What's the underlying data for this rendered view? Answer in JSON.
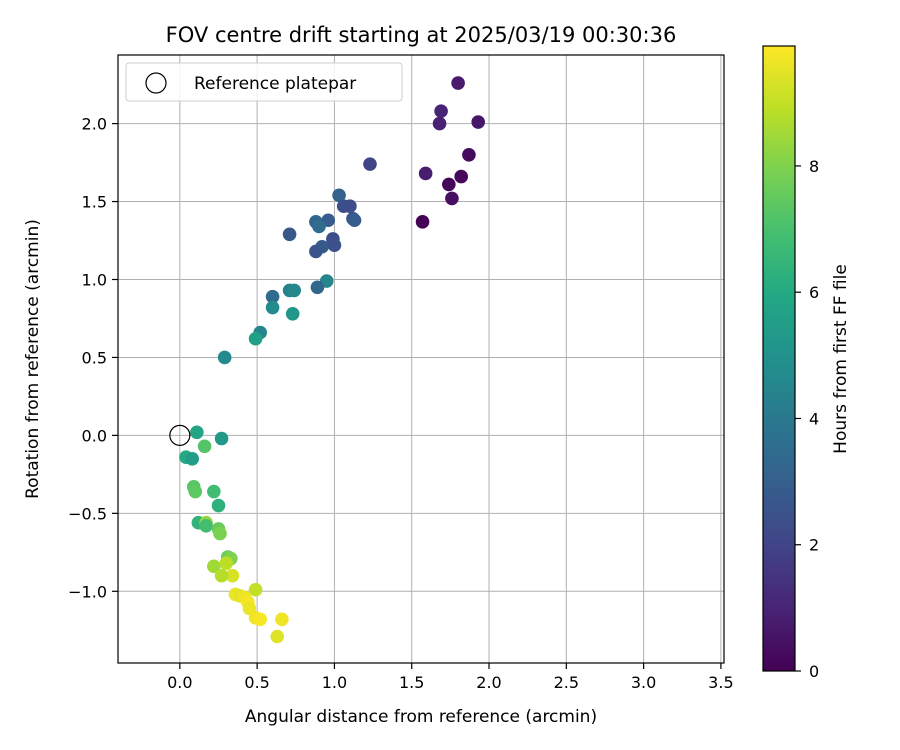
{
  "chart_data": {
    "type": "scatter",
    "title": "FOV centre drift starting at 2025/03/19 00:30:36",
    "xlabel": "Angular distance from reference (arcmin)",
    "ylabel": "Rotation from reference (arcmin)",
    "xlim": [
      -0.4,
      3.52
    ],
    "ylim": [
      -1.46,
      2.44
    ],
    "xticks": [
      0.0,
      0.5,
      1.0,
      1.5,
      2.0,
      2.5,
      3.0,
      3.5
    ],
    "xtick_labels": [
      "0.0",
      "0.5",
      "1.0",
      "1.5",
      "2.0",
      "2.5",
      "3.0",
      "3.5"
    ],
    "yticks": [
      -1.0,
      -0.5,
      0.0,
      0.5,
      1.0,
      1.5,
      2.0
    ],
    "ytick_labels": [
      "−1.0",
      "−0.5",
      "0.0",
      "0.5",
      "1.0",
      "1.5",
      "2.0"
    ],
    "grid": true,
    "legend": {
      "placement": "upper-left",
      "entries": [
        "Reference platepar"
      ]
    },
    "reference_point": {
      "x": 0.0,
      "y": 0.0
    },
    "colorbar": {
      "label": "Hours from first FF file",
      "min": 0,
      "max": 9.9,
      "ticks": [
        0,
        2,
        4,
        6,
        8
      ],
      "tick_labels": [
        "0",
        "2",
        "4",
        "6",
        "8"
      ],
      "colormap": "viridis"
    },
    "points": [
      {
        "x": 1.8,
        "y": 2.26,
        "hours": 0.7
      },
      {
        "x": 1.69,
        "y": 2.08,
        "hours": 1.0
      },
      {
        "x": 1.68,
        "y": 2.0,
        "hours": 0.9
      },
      {
        "x": 1.93,
        "y": 2.01,
        "hours": 0.6
      },
      {
        "x": 1.87,
        "y": 1.8,
        "hours": 0.3
      },
      {
        "x": 1.59,
        "y": 1.68,
        "hours": 0.8
      },
      {
        "x": 1.82,
        "y": 1.66,
        "hours": 0.2
      },
      {
        "x": 1.74,
        "y": 1.61,
        "hours": 0.15
      },
      {
        "x": 1.76,
        "y": 1.52,
        "hours": 0.4
      },
      {
        "x": 1.57,
        "y": 1.37,
        "hours": 0.05
      },
      {
        "x": 1.23,
        "y": 1.74,
        "hours": 2.0
      },
      {
        "x": 1.03,
        "y": 1.54,
        "hours": 3.1
      },
      {
        "x": 1.06,
        "y": 1.47,
        "hours": 2.4
      },
      {
        "x": 1.1,
        "y": 1.47,
        "hours": 2.3
      },
      {
        "x": 1.12,
        "y": 1.39,
        "hours": 2.6
      },
      {
        "x": 1.13,
        "y": 1.38,
        "hours": 2.9
      },
      {
        "x": 0.88,
        "y": 1.37,
        "hours": 3.2
      },
      {
        "x": 0.96,
        "y": 1.38,
        "hours": 2.9
      },
      {
        "x": 0.9,
        "y": 1.34,
        "hours": 3.5
      },
      {
        "x": 0.71,
        "y": 1.29,
        "hours": 2.7
      },
      {
        "x": 0.99,
        "y": 1.26,
        "hours": 2.3
      },
      {
        "x": 0.92,
        "y": 1.21,
        "hours": 2.8
      },
      {
        "x": 1.0,
        "y": 1.22,
        "hours": 2.5
      },
      {
        "x": 0.88,
        "y": 1.18,
        "hours": 2.6
      },
      {
        "x": 0.95,
        "y": 0.99,
        "hours": 4.5
      },
      {
        "x": 0.89,
        "y": 0.95,
        "hours": 3.3
      },
      {
        "x": 0.71,
        "y": 0.93,
        "hours": 4.3
      },
      {
        "x": 0.74,
        "y": 0.93,
        "hours": 4.6
      },
      {
        "x": 0.6,
        "y": 0.89,
        "hours": 3.4
      },
      {
        "x": 0.6,
        "y": 0.82,
        "hours": 4.7
      },
      {
        "x": 0.73,
        "y": 0.78,
        "hours": 5.2
      },
      {
        "x": 0.52,
        "y": 0.66,
        "hours": 4.5
      },
      {
        "x": 0.49,
        "y": 0.62,
        "hours": 5.6
      },
      {
        "x": 0.29,
        "y": 0.5,
        "hours": 4.7
      },
      {
        "x": 0.11,
        "y": 0.02,
        "hours": 5.8
      },
      {
        "x": 0.27,
        "y": -0.02,
        "hours": 5.3
      },
      {
        "x": 0.16,
        "y": -0.07,
        "hours": 7.2
      },
      {
        "x": 0.04,
        "y": -0.14,
        "hours": 6.0
      },
      {
        "x": 0.08,
        "y": -0.15,
        "hours": 5.5
      },
      {
        "x": 0.09,
        "y": -0.33,
        "hours": 7.3
      },
      {
        "x": 0.1,
        "y": -0.36,
        "hours": 7.4
      },
      {
        "x": 0.22,
        "y": -0.36,
        "hours": 6.8
      },
      {
        "x": 0.25,
        "y": -0.45,
        "hours": 6.3
      },
      {
        "x": 0.12,
        "y": -0.56,
        "hours": 6.4
      },
      {
        "x": 0.17,
        "y": -0.56,
        "hours": 8.3
      },
      {
        "x": 0.17,
        "y": -0.58,
        "hours": 6.9
      },
      {
        "x": 0.25,
        "y": -0.6,
        "hours": 7.6
      },
      {
        "x": 0.26,
        "y": -0.63,
        "hours": 7.9
      },
      {
        "x": 0.31,
        "y": -0.78,
        "hours": 7.7
      },
      {
        "x": 0.33,
        "y": -0.79,
        "hours": 8.0
      },
      {
        "x": 0.3,
        "y": -0.82,
        "hours": 8.9
      },
      {
        "x": 0.22,
        "y": -0.84,
        "hours": 8.5
      },
      {
        "x": 0.34,
        "y": -0.9,
        "hours": 9.3
      },
      {
        "x": 0.27,
        "y": -0.9,
        "hours": 8.8
      },
      {
        "x": 0.49,
        "y": -0.99,
        "hours": 9.0
      },
      {
        "x": 0.36,
        "y": -1.02,
        "hours": 9.6
      },
      {
        "x": 0.39,
        "y": -1.03,
        "hours": 9.5
      },
      {
        "x": 0.42,
        "y": -1.04,
        "hours": 9.7
      },
      {
        "x": 0.44,
        "y": -1.07,
        "hours": 9.8
      },
      {
        "x": 0.45,
        "y": -1.11,
        "hours": 9.6
      },
      {
        "x": 0.49,
        "y": -1.17,
        "hours": 9.7
      },
      {
        "x": 0.52,
        "y": -1.18,
        "hours": 9.8
      },
      {
        "x": 0.66,
        "y": -1.18,
        "hours": 9.7
      },
      {
        "x": 0.63,
        "y": -1.29,
        "hours": 9.4
      }
    ]
  }
}
